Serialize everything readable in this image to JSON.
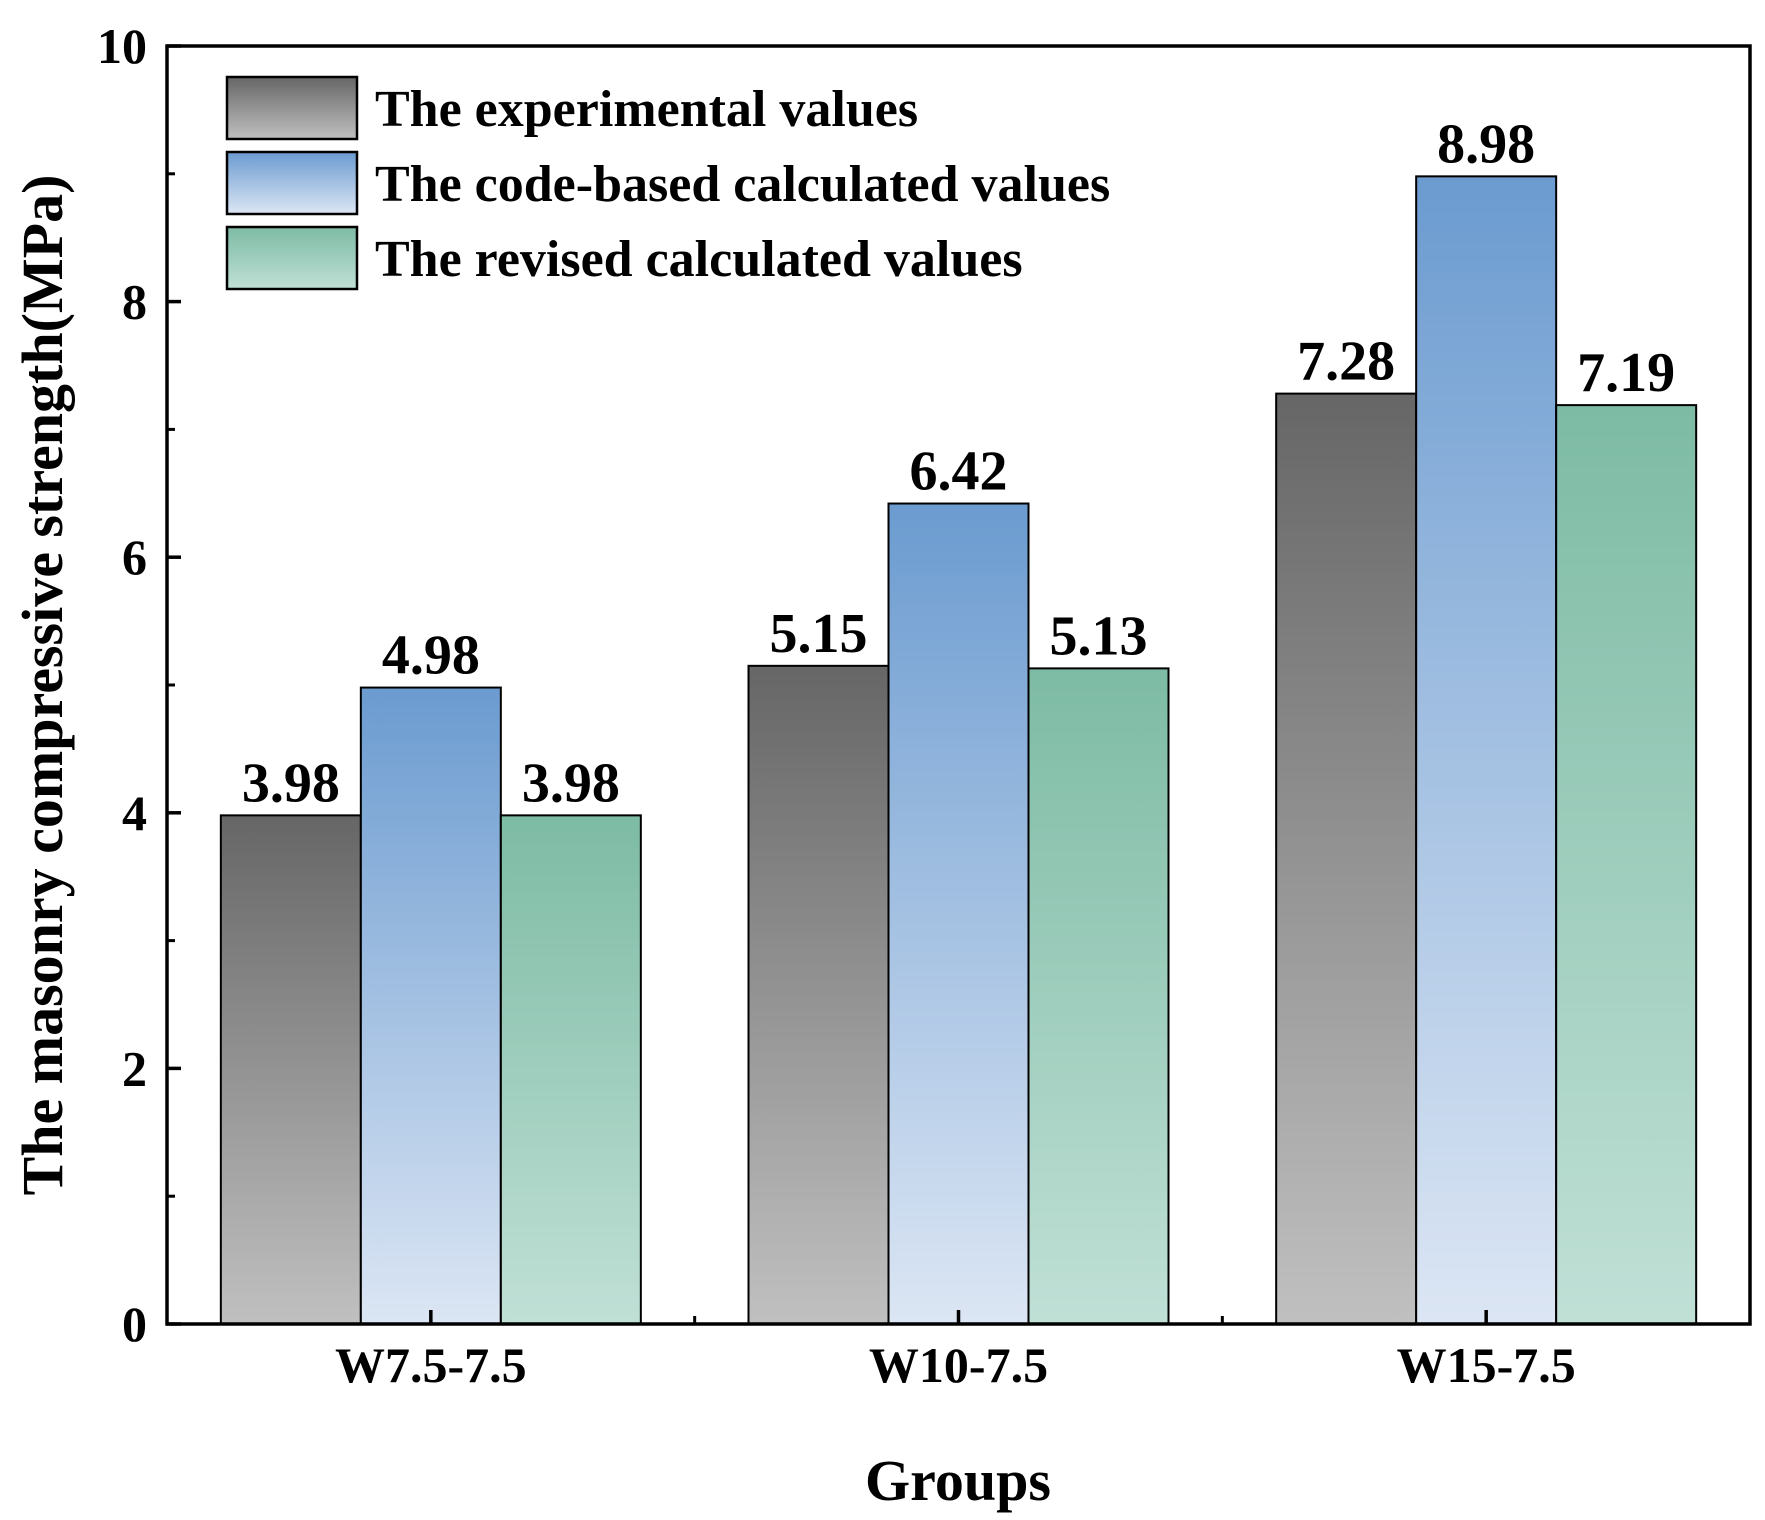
{
  "chart_data": {
    "type": "bar",
    "title": "",
    "xlabel": "Groups",
    "ylabel": "The masonry compressive strength(MPa)",
    "ylim": [
      0,
      10
    ],
    "yticks": [
      0,
      2,
      4,
      6,
      8,
      10
    ],
    "yminor": [
      1,
      3,
      5,
      7,
      9
    ],
    "categories": [
      "W7.5-7.5",
      "W10-7.5",
      "W15-7.5"
    ],
    "series": [
      {
        "name": "The experimental values",
        "values": [
          3.98,
          5.15,
          7.28
        ],
        "labels": [
          "3.98",
          "5.15",
          "7.28"
        ],
        "color_top": "#666666",
        "color_bottom": "#c0c0c0"
      },
      {
        "name": "The code-based calculated values",
        "values": [
          4.98,
          6.42,
          8.98
        ],
        "labels": [
          "4.98",
          "6.42",
          "8.98"
        ],
        "color_top": "#6b9bd0",
        "color_bottom": "#dce6f4"
      },
      {
        "name": "The revised calculated values",
        "values": [
          3.98,
          5.13,
          7.19
        ],
        "labels": [
          "3.98",
          "5.13",
          "7.19"
        ],
        "color_top": "#7dbba4",
        "color_bottom": "#c0e0d6"
      }
    ],
    "legend": "top-left",
    "grid": false
  }
}
